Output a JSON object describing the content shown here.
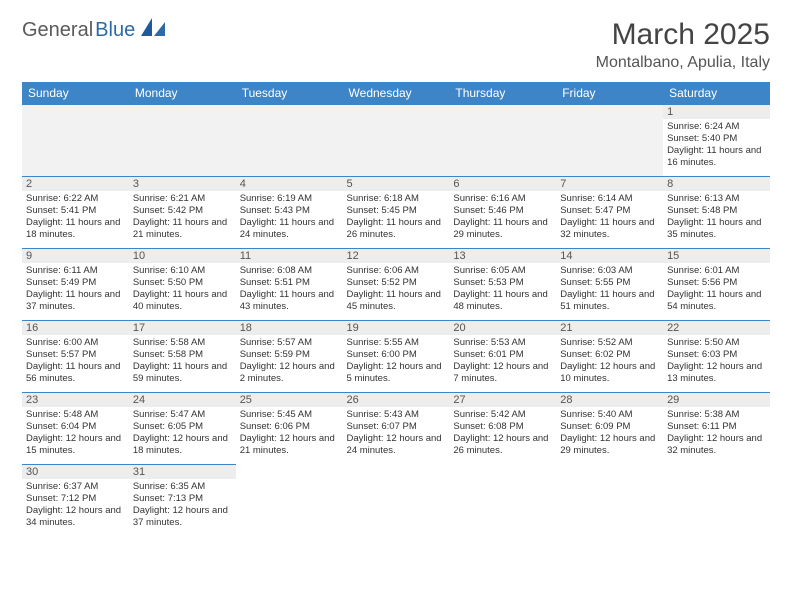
{
  "brand": {
    "part1": "General",
    "part2": "Blue"
  },
  "title": "March 2025",
  "location": "Montalbano, Apulia, Italy",
  "colors": {
    "header_bg": "#3d85c6",
    "header_text": "#ffffff",
    "border": "#3d85c6",
    "daynum_bg": "#ededed",
    "empty_bg": "#f2f2f2",
    "text": "#333333"
  },
  "dayNames": [
    "Sunday",
    "Monday",
    "Tuesday",
    "Wednesday",
    "Thursday",
    "Friday",
    "Saturday"
  ],
  "weeks": [
    [
      null,
      null,
      null,
      null,
      null,
      null,
      {
        "d": "1",
        "sr": "6:24 AM",
        "ss": "5:40 PM",
        "dl": "11 hours and 16 minutes."
      }
    ],
    [
      {
        "d": "2",
        "sr": "6:22 AM",
        "ss": "5:41 PM",
        "dl": "11 hours and 18 minutes."
      },
      {
        "d": "3",
        "sr": "6:21 AM",
        "ss": "5:42 PM",
        "dl": "11 hours and 21 minutes."
      },
      {
        "d": "4",
        "sr": "6:19 AM",
        "ss": "5:43 PM",
        "dl": "11 hours and 24 minutes."
      },
      {
        "d": "5",
        "sr": "6:18 AM",
        "ss": "5:45 PM",
        "dl": "11 hours and 26 minutes."
      },
      {
        "d": "6",
        "sr": "6:16 AM",
        "ss": "5:46 PM",
        "dl": "11 hours and 29 minutes."
      },
      {
        "d": "7",
        "sr": "6:14 AM",
        "ss": "5:47 PM",
        "dl": "11 hours and 32 minutes."
      },
      {
        "d": "8",
        "sr": "6:13 AM",
        "ss": "5:48 PM",
        "dl": "11 hours and 35 minutes."
      }
    ],
    [
      {
        "d": "9",
        "sr": "6:11 AM",
        "ss": "5:49 PM",
        "dl": "11 hours and 37 minutes."
      },
      {
        "d": "10",
        "sr": "6:10 AM",
        "ss": "5:50 PM",
        "dl": "11 hours and 40 minutes."
      },
      {
        "d": "11",
        "sr": "6:08 AM",
        "ss": "5:51 PM",
        "dl": "11 hours and 43 minutes."
      },
      {
        "d": "12",
        "sr": "6:06 AM",
        "ss": "5:52 PM",
        "dl": "11 hours and 45 minutes."
      },
      {
        "d": "13",
        "sr": "6:05 AM",
        "ss": "5:53 PM",
        "dl": "11 hours and 48 minutes."
      },
      {
        "d": "14",
        "sr": "6:03 AM",
        "ss": "5:55 PM",
        "dl": "11 hours and 51 minutes."
      },
      {
        "d": "15",
        "sr": "6:01 AM",
        "ss": "5:56 PM",
        "dl": "11 hours and 54 minutes."
      }
    ],
    [
      {
        "d": "16",
        "sr": "6:00 AM",
        "ss": "5:57 PM",
        "dl": "11 hours and 56 minutes."
      },
      {
        "d": "17",
        "sr": "5:58 AM",
        "ss": "5:58 PM",
        "dl": "11 hours and 59 minutes."
      },
      {
        "d": "18",
        "sr": "5:57 AM",
        "ss": "5:59 PM",
        "dl": "12 hours and 2 minutes."
      },
      {
        "d": "19",
        "sr": "5:55 AM",
        "ss": "6:00 PM",
        "dl": "12 hours and 5 minutes."
      },
      {
        "d": "20",
        "sr": "5:53 AM",
        "ss": "6:01 PM",
        "dl": "12 hours and 7 minutes."
      },
      {
        "d": "21",
        "sr": "5:52 AM",
        "ss": "6:02 PM",
        "dl": "12 hours and 10 minutes."
      },
      {
        "d": "22",
        "sr": "5:50 AM",
        "ss": "6:03 PM",
        "dl": "12 hours and 13 minutes."
      }
    ],
    [
      {
        "d": "23",
        "sr": "5:48 AM",
        "ss": "6:04 PM",
        "dl": "12 hours and 15 minutes."
      },
      {
        "d": "24",
        "sr": "5:47 AM",
        "ss": "6:05 PM",
        "dl": "12 hours and 18 minutes."
      },
      {
        "d": "25",
        "sr": "5:45 AM",
        "ss": "6:06 PM",
        "dl": "12 hours and 21 minutes."
      },
      {
        "d": "26",
        "sr": "5:43 AM",
        "ss": "6:07 PM",
        "dl": "12 hours and 24 minutes."
      },
      {
        "d": "27",
        "sr": "5:42 AM",
        "ss": "6:08 PM",
        "dl": "12 hours and 26 minutes."
      },
      {
        "d": "28",
        "sr": "5:40 AM",
        "ss": "6:09 PM",
        "dl": "12 hours and 29 minutes."
      },
      {
        "d": "29",
        "sr": "5:38 AM",
        "ss": "6:11 PM",
        "dl": "12 hours and 32 minutes."
      }
    ],
    [
      {
        "d": "30",
        "sr": "6:37 AM",
        "ss": "7:12 PM",
        "dl": "12 hours and 34 minutes."
      },
      {
        "d": "31",
        "sr": "6:35 AM",
        "ss": "7:13 PM",
        "dl": "12 hours and 37 minutes."
      },
      null,
      null,
      null,
      null,
      null
    ]
  ],
  "labels": {
    "sunrise": "Sunrise:",
    "sunset": "Sunset:",
    "daylight": "Daylight:"
  }
}
